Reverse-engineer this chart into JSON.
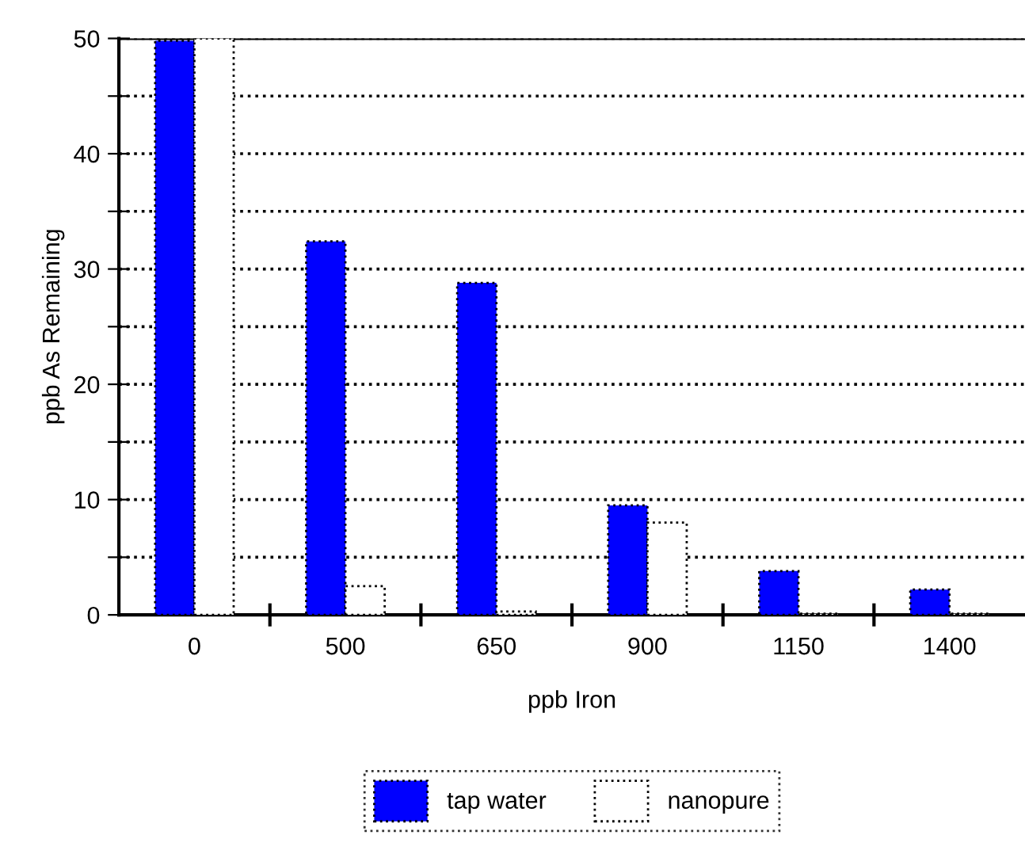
{
  "chart_data": {
    "type": "bar",
    "xlabel": "ppb Iron",
    "ylabel": "ppb As Remaining",
    "categories": [
      "0",
      "500",
      "650",
      "900",
      "1150",
      "1400"
    ],
    "series": [
      {
        "name": "tap water",
        "color": "#0000ff",
        "values": [
          49.8,
          32.4,
          28.8,
          9.5,
          3.8,
          2.2
        ]
      },
      {
        "name": "nanopure",
        "color": "#ffffff",
        "values": [
          50,
          2.5,
          0.3,
          8.0,
          0.1,
          0.1
        ]
      }
    ],
    "ylim": [
      0,
      50
    ],
    "yticks": [
      0,
      {
        "value": 5,
        "label": null
      },
      10,
      {
        "value": 15,
        "label": null
      },
      20,
      {
        "value": 25,
        "label": null
      },
      30,
      {
        "value": 35,
        "label": null
      },
      40,
      {
        "value": 45,
        "label": null
      },
      50
    ],
    "grid": "y",
    "legend": "bottom"
  }
}
